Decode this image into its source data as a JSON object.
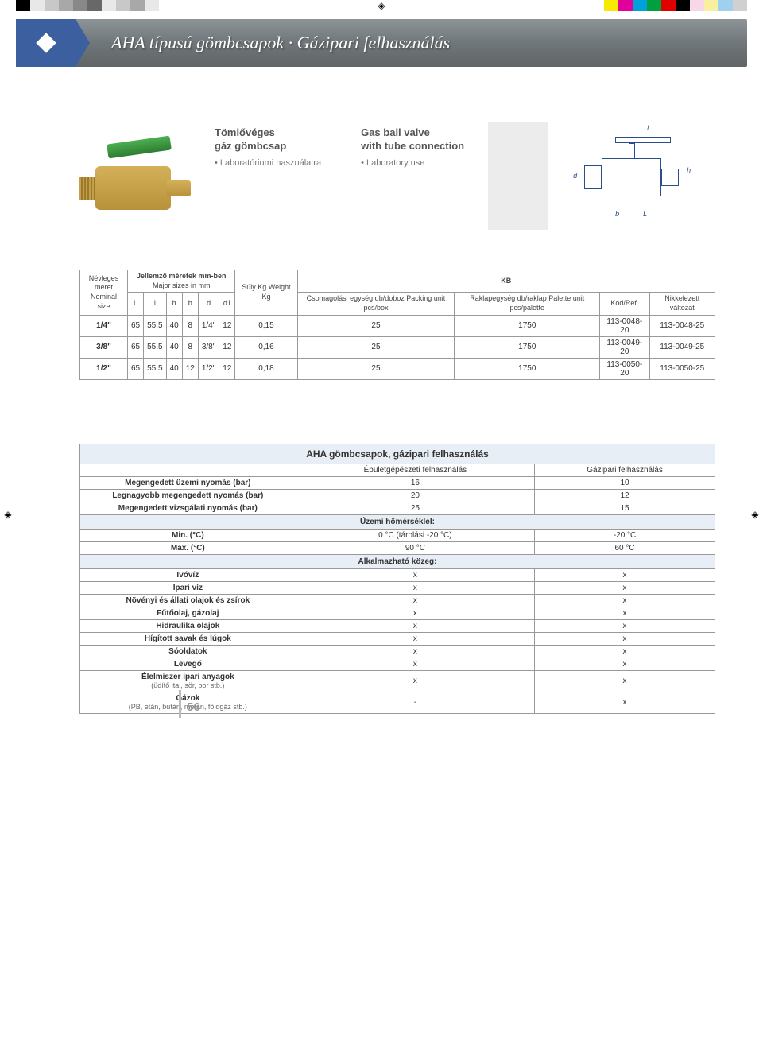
{
  "colorbars": {
    "left": [
      "#000000",
      "#e8e8e8",
      "#c8c8c8",
      "#a8a8a8",
      "#888888",
      "#686868",
      "#e8e8e8",
      "#c8c8c8",
      "#a8a8a8",
      "#e8e8e8"
    ],
    "right": [
      "#f7ea00",
      "#e2009a",
      "#00a0d8",
      "#00a040",
      "#e00000",
      "#000000",
      "#f8d8e8",
      "#f8f0a0",
      "#a0d0f0",
      "#d0d0d0"
    ]
  },
  "header": {
    "title": "AHA típusú gömbcsapok · Gázipari felhasználás"
  },
  "intro": {
    "hu_title1": "Tömlővéges",
    "hu_title2": "gáz gömbcsap",
    "hu_sub": "• Laboratóriumi használatra",
    "en_title1": "Gas ball valve",
    "en_title2": "with tube connection",
    "en_sub": "• Laboratory use"
  },
  "tech_dims": {
    "l_top": "l",
    "h": "h",
    "d": "d",
    "d1": "d",
    "b": "b",
    "L": "L"
  },
  "spec_headers": {
    "nominal": "Névleges méret Nominal size",
    "major_sizes": "Jellemző méretek mm-ben",
    "major_sizes2": "Major sizes in mm",
    "kb": "KB",
    "L": "L",
    "l": "l",
    "h": "h",
    "b": "b",
    "d": "d",
    "d1": "d1",
    "weight": "Súly Kg Weight Kg",
    "packing": "Csomagolási egység db/doboz Packing unit pcs/box",
    "palette": "Raklapegység db/raklap Palette unit pcs/palette",
    "ref": "Kód/Ref.",
    "nickel": "Nikkelezett változat"
  },
  "spec_rows": [
    {
      "size": "1/4\"",
      "L": "65",
      "l": "55,5",
      "h": "40",
      "b": "8",
      "d": "1/4\"",
      "d1": "12",
      "w": "0,15",
      "pk": "25",
      "pal": "1750",
      "ref": "113-0048-20",
      "ni": "113-0048-25"
    },
    {
      "size": "3/8\"",
      "L": "65",
      "l": "55,5",
      "h": "40",
      "b": "8",
      "d": "3/8\"",
      "d1": "12",
      "w": "0,16",
      "pk": "25",
      "pal": "1750",
      "ref": "113-0049-20",
      "ni": "113-0049-25"
    },
    {
      "size": "1/2\"",
      "L": "65",
      "l": "55,5",
      "h": "40",
      "b": "12",
      "d": "1/2\"",
      "d1": "12",
      "w": "0,18",
      "pk": "25",
      "pal": "1750",
      "ref": "113-0050-20",
      "ni": "113-0050-25"
    }
  ],
  "usage": {
    "title": "AHA gömbcsapok, gázipari felhasználás",
    "col1": "Épületgépészeti felhasználás",
    "col2": "Gázipari felhasználás",
    "sec_temp": "Üzemi hőmérséklel:",
    "sec_media": "Alkalmazható közeg:",
    "rows_pressure": [
      {
        "label": "Megengedett üzemi nyomás (bar)",
        "v1": "16",
        "v2": "10"
      },
      {
        "label": "Legnagyobb megengedett nyomás (bar)",
        "v1": "20",
        "v2": "12"
      },
      {
        "label": "Megengedett vizsgálati nyomás (bar)",
        "v1": "25",
        "v2": "15"
      }
    ],
    "rows_temp": [
      {
        "label": "Min. (°C)",
        "v1": "0 °C (tárolási -20 °C)",
        "v2": "-20 °C"
      },
      {
        "label": "Max. (°C)",
        "v1": "90 °C",
        "v2": "60 °C"
      }
    ],
    "rows_media": [
      {
        "label": "Ivóvíz",
        "v1": "x",
        "v2": "x"
      },
      {
        "label": "Ipari víz",
        "v1": "x",
        "v2": "x"
      },
      {
        "label": "Növényi és állati olajok és zsírok",
        "v1": "x",
        "v2": "x"
      },
      {
        "label": "Fűtőolaj, gázolaj",
        "v1": "x",
        "v2": "x"
      },
      {
        "label": "Hidraulika olajok",
        "v1": "x",
        "v2": "x"
      },
      {
        "label": "Hígított savak és lúgok",
        "v1": "x",
        "v2": "x"
      },
      {
        "label": "Sóoldatok",
        "v1": "x",
        "v2": "x"
      },
      {
        "label": "Levegő",
        "v1": "x",
        "v2": "x"
      },
      {
        "label": "Élelmiszer ipari anyagok",
        "sub": "(üdítő ital, sör, bor stb.)",
        "v1": "x",
        "v2": "x"
      },
      {
        "label": "Gázok",
        "sub": "(PB, etán, bután, metán, földgáz stb.)",
        "v1": "-",
        "v2": "x"
      }
    ]
  },
  "page_number": "56"
}
